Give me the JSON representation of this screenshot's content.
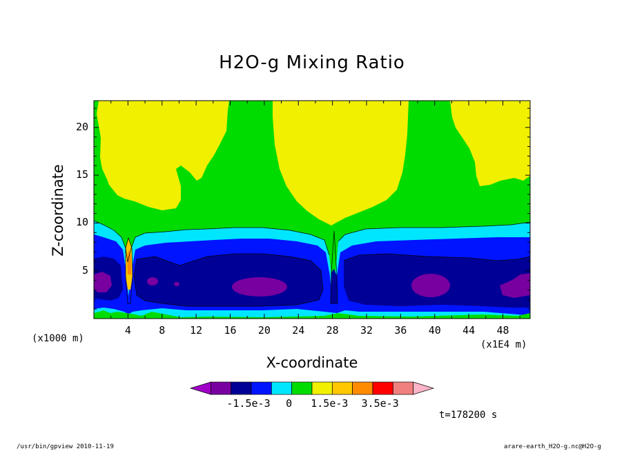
{
  "chart_data": {
    "type": "heatmap",
    "title": "H2O-g Mixing Ratio",
    "xlabel": "X-coordinate",
    "ylabel": "Z-coordinate",
    "x_unit_note": "(x1000 m)",
    "x_scale_note": "(x1E4 m)",
    "x_ticks": [
      "4",
      "8",
      "12",
      "16",
      "20",
      "24",
      "28",
      "32",
      "36",
      "40",
      "44",
      "48"
    ],
    "y_ticks": [
      "5",
      "10",
      "15",
      "20"
    ],
    "xlim": [
      0,
      51.2
    ],
    "ylim": [
      0,
      22.8
    ],
    "colorbar": {
      "colors": [
        "#a000c8",
        "#7800a0",
        "#000096",
        "#0014ff",
        "#00e6ff",
        "#00dc00",
        "#f0f000",
        "#ffc800",
        "#ff8c00",
        "#ff0000",
        "#f08080",
        "#ffb4c8"
      ],
      "labels": [
        "-1.5e-3",
        "0",
        "1.5e-3",
        "3.5e-3"
      ]
    },
    "regions": [
      {
        "name": "yellow-upper-left",
        "color": "#f0f000",
        "z_range": [
          10.5,
          22.8
        ],
        "x_range": [
          0,
          4.5
        ]
      },
      {
        "name": "yellow-upper-center",
        "color": "#f0f000",
        "z_range": [
          9.5,
          22.8
        ],
        "x_range": [
          20.5,
          31
        ]
      },
      {
        "name": "yellow-upper-right",
        "color": "#f0f000",
        "z_range": [
          14.5,
          22.8
        ],
        "x_range": [
          42,
          51.2
        ]
      },
      {
        "name": "dark-blue-core-left",
        "color": "#000096",
        "z_range": [
          1.5,
          7.5
        ],
        "x_range": [
          5,
          27
        ]
      },
      {
        "name": "dark-blue-core-right",
        "color": "#000096",
        "z_range": [
          1.5,
          7.5
        ],
        "x_range": [
          29,
          51
        ]
      },
      {
        "name": "purple-core-1",
        "color": "#7800a0",
        "center": [
          20,
          3.5
        ]
      },
      {
        "name": "purple-core-2",
        "color": "#7800a0",
        "center": [
          39.5,
          3.5
        ]
      }
    ]
  },
  "time_label": "t=178200 s",
  "footer": {
    "left": "/usr/bin/gpview  2010-11-19",
    "right": "arare-earth_H2O-g.nc@H2O-g"
  }
}
